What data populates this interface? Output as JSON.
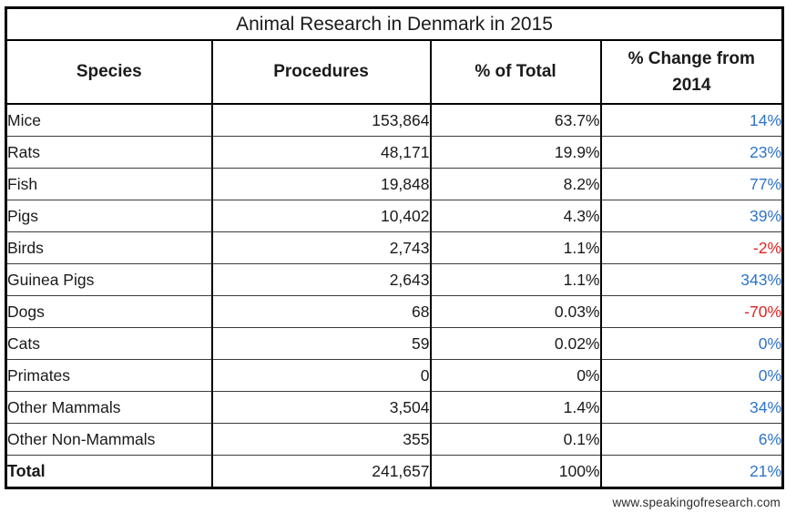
{
  "table": {
    "title": "Animal Research in Denmark in 2015",
    "columns": [
      "Species",
      "Procedures",
      "% of Total",
      "% Change from 2014"
    ],
    "rows": [
      {
        "species": "Mice",
        "procedures": "153,864",
        "pct_of_total": "63.7%",
        "change": "14%",
        "change_class": "pos"
      },
      {
        "species": "Rats",
        "procedures": "48,171",
        "pct_of_total": "19.9%",
        "change": "23%",
        "change_class": "pos"
      },
      {
        "species": "Fish",
        "procedures": "19,848",
        "pct_of_total": "8.2%",
        "change": "77%",
        "change_class": "pos"
      },
      {
        "species": "Pigs",
        "procedures": "10,402",
        "pct_of_total": "4.3%",
        "change": "39%",
        "change_class": "pos"
      },
      {
        "species": "Birds",
        "procedures": "2,743",
        "pct_of_total": "1.1%",
        "change": "-2%",
        "change_class": "neg"
      },
      {
        "species": "Guinea Pigs",
        "procedures": "2,643",
        "pct_of_total": "1.1%",
        "change": "343%",
        "change_class": "pos"
      },
      {
        "species": "Dogs",
        "procedures": "68",
        "pct_of_total": "0.03%",
        "change": "-70%",
        "change_class": "neg"
      },
      {
        "species": "Cats",
        "procedures": "59",
        "pct_of_total": "0.02%",
        "change": "0%",
        "change_class": "pos"
      },
      {
        "species": "Primates",
        "procedures": "0",
        "pct_of_total": "0%",
        "change": "0%",
        "change_class": "pos"
      },
      {
        "species": "Other Mammals",
        "procedures": "3,504",
        "pct_of_total": "1.4%",
        "change": "34%",
        "change_class": "pos"
      },
      {
        "species": "Other Non-Mammals",
        "procedures": "355",
        "pct_of_total": "0.1%",
        "change": "6%",
        "change_class": "pos"
      }
    ],
    "total": {
      "species": "Total",
      "procedures": "241,657",
      "pct_of_total": "100%",
      "change": "21%",
      "change_class": "pos"
    }
  },
  "footer": {
    "url_text": "www.speakingofresearch.com"
  },
  "colors": {
    "positive_change_blue": "#2e74c8",
    "negative_change_red": "#e02222",
    "border_black": "#000000",
    "text_black": "#1a1a1a",
    "background_white": "#ffffff"
  },
  "chart_data": {
    "type": "table",
    "title": "Animal Research in Denmark in 2015",
    "columns": [
      "Species",
      "Procedures",
      "% of Total",
      "% Change from 2014"
    ],
    "rows": [
      [
        "Mice",
        153864,
        "63.7%",
        "14%"
      ],
      [
        "Rats",
        48171,
        "19.9%",
        "23%"
      ],
      [
        "Fish",
        19848,
        "8.2%",
        "77%"
      ],
      [
        "Pigs",
        10402,
        "4.3%",
        "39%"
      ],
      [
        "Birds",
        2743,
        "1.1%",
        "-2%"
      ],
      [
        "Guinea Pigs",
        2643,
        "1.1%",
        "343%"
      ],
      [
        "Dogs",
        68,
        "0.03%",
        "-70%"
      ],
      [
        "Cats",
        59,
        "0.02%",
        "0%"
      ],
      [
        "Primates",
        0,
        "0%",
        "0%"
      ],
      [
        "Other Mammals",
        3504,
        "1.4%",
        "34%"
      ],
      [
        "Other Non-Mammals",
        355,
        "0.1%",
        "6%"
      ],
      [
        "Total",
        241657,
        "100%",
        "21%"
      ]
    ],
    "annotations": [
      "www.speakingofresearch.com"
    ],
    "style_notes": "negative % change values shown in red, positive/zero in blue"
  }
}
